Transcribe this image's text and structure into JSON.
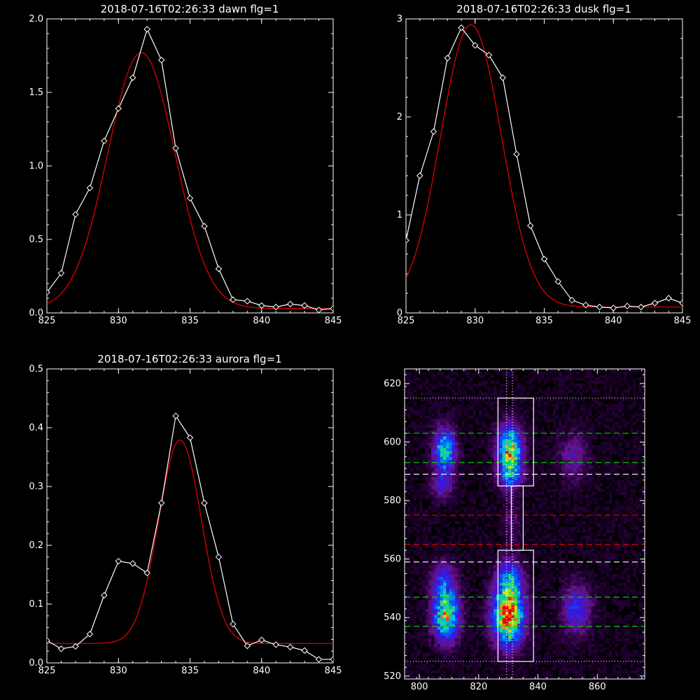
{
  "chart_data": [
    {
      "id": "dawn",
      "type": "line",
      "title": "2018-07-16T02:26:33 dawn flg=1",
      "xlim": [
        825,
        845
      ],
      "ylim": [
        0,
        2.0
      ],
      "xticks": [
        "825",
        "830",
        "835",
        "840",
        "845"
      ],
      "xtick_values": [
        825,
        830,
        835,
        840,
        845
      ],
      "yticks": [
        "0.0",
        "0.5",
        "1.0",
        "1.5",
        "2.0"
      ],
      "ytick_values": [
        0,
        0.5,
        1.0,
        1.5,
        2.0
      ],
      "series": [
        {
          "style": "data",
          "color": "#ffffff",
          "x": [
            825,
            826,
            827,
            828,
            829,
            830,
            831,
            832,
            833,
            834,
            835,
            836,
            837,
            838,
            839,
            840,
            841,
            842,
            843,
            844,
            845
          ],
          "y": [
            0.14,
            0.27,
            0.67,
            0.85,
            1.17,
            1.39,
            1.6,
            1.93,
            1.72,
            1.12,
            0.78,
            0.59,
            0.3,
            0.09,
            0.08,
            0.05,
            0.04,
            0.06,
            0.05,
            0.02,
            0.03
          ]
        },
        {
          "style": "fit",
          "color": "#e00000",
          "center": 831.6,
          "amplitude": 1.74,
          "sigma": 2.35,
          "offset": 0.03
        }
      ]
    },
    {
      "id": "dusk",
      "type": "line",
      "title": "2018-07-16T02:26:33 dusk flg=1",
      "xlim": [
        825,
        845
      ],
      "ylim": [
        0,
        3
      ],
      "xticks": [
        "825",
        "830",
        "835",
        "840",
        "845"
      ],
      "xtick_values": [
        825,
        830,
        835,
        840,
        845
      ],
      "yticks": [
        "0",
        "1",
        "2",
        "3"
      ],
      "ytick_values": [
        0,
        1,
        2,
        3
      ],
      "series": [
        {
          "style": "data",
          "color": "#ffffff",
          "x": [
            825,
            826,
            827,
            828,
            829,
            830,
            831,
            832,
            833,
            834,
            835,
            836,
            837,
            838,
            839,
            840,
            841,
            842,
            843,
            844,
            845
          ],
          "y": [
            0.74,
            1.4,
            1.85,
            2.6,
            2.91,
            2.73,
            2.63,
            2.4,
            1.62,
            0.89,
            0.55,
            0.32,
            0.13,
            0.08,
            0.06,
            0.05,
            0.07,
            0.06,
            0.1,
            0.15,
            0.1
          ]
        },
        {
          "style": "fit",
          "color": "#e00000",
          "center": 829.7,
          "amplitude": 2.88,
          "sigma": 2.2,
          "offset": 0.06
        }
      ]
    },
    {
      "id": "aurora",
      "type": "line",
      "title": "2018-07-16T02:26:33 aurora flg=1",
      "xlim": [
        825,
        845
      ],
      "ylim": [
        0,
        0.5
      ],
      "xticks": [
        "825",
        "830",
        "835",
        "840",
        "845"
      ],
      "xtick_values": [
        825,
        830,
        835,
        840,
        845
      ],
      "yticks": [
        "0.0",
        "0.1",
        "0.2",
        "0.3",
        "0.4",
        "0.5"
      ],
      "ytick_values": [
        0,
        0.1,
        0.2,
        0.3,
        0.4,
        0.5
      ],
      "series": [
        {
          "style": "data",
          "color": "#ffffff",
          "x": [
            825,
            826,
            827,
            828,
            829,
            830,
            831,
            832,
            833,
            834,
            835,
            836,
            837,
            838,
            839,
            840,
            841,
            842,
            843,
            844,
            845
          ],
          "y": [
            0.038,
            0.024,
            0.028,
            0.049,
            0.115,
            0.173,
            0.169,
            0.153,
            0.272,
            0.42,
            0.383,
            0.272,
            0.18,
            0.066,
            0.029,
            0.039,
            0.031,
            0.027,
            0.021,
            0.006,
            0.006
          ]
        },
        {
          "style": "fit",
          "color": "#e00000",
          "center": 834.3,
          "amplitude": 0.346,
          "sigma": 1.5,
          "offset": 0.033
        }
      ]
    },
    {
      "id": "image",
      "type": "heatmap",
      "xlim": [
        795,
        876
      ],
      "ylim": [
        519,
        625
      ],
      "xticks": [
        "800",
        "820",
        "840",
        "860"
      ],
      "xtick_values": [
        800,
        820,
        840,
        860
      ],
      "yticks": [
        "520",
        "540",
        "560",
        "580",
        "600",
        "620"
      ],
      "ytick_values": [
        520,
        540,
        560,
        580,
        600,
        620
      ],
      "spots": [
        {
          "x": 808.5,
          "y": 597,
          "sx": 2.6,
          "sy": 5.5,
          "amp": 0.72
        },
        {
          "x": 807.5,
          "y": 585,
          "sx": 2.6,
          "sy": 3.5,
          "amp": 0.28
        },
        {
          "x": 809,
          "y": 541,
          "sx": 3.0,
          "sy": 6.0,
          "amp": 0.95
        },
        {
          "x": 808,
          "y": 553,
          "sx": 3.0,
          "sy": 4.5,
          "amp": 0.35
        },
        {
          "x": 830.5,
          "y": 597,
          "sx": 2.8,
          "sy": 6.0,
          "amp": 1.0
        },
        {
          "x": 831,
          "y": 588,
          "sx": 3.0,
          "sy": 3.0,
          "amp": 0.3
        },
        {
          "x": 830,
          "y": 541,
          "sx": 3.6,
          "sy": 7.0,
          "amp": 1.2
        },
        {
          "x": 830.5,
          "y": 554,
          "sx": 3.0,
          "sy": 4.5,
          "amp": 0.45
        },
        {
          "x": 852,
          "y": 595,
          "sx": 3.5,
          "sy": 6.0,
          "amp": 0.25
        },
        {
          "x": 853,
          "y": 543,
          "sx": 3.5,
          "sy": 6.0,
          "amp": 0.42
        },
        {
          "x": 831,
          "y": 573,
          "sx": 2.0,
          "sy": 6.0,
          "amp": 0.16
        }
      ],
      "dotted_vertical_x": [
        829.4,
        831.4
      ],
      "dotted_horizontal_y": [
        525,
        615
      ],
      "white_dashed_y": [
        559,
        589
      ],
      "green_dashed_y": [
        537,
        547,
        593,
        603
      ],
      "red_dashed_y": [
        565,
        575
      ],
      "boxes": [
        {
          "x0": 826.5,
          "x1": 838.5,
          "y0": 525,
          "y1": 563
        },
        {
          "x0": 826.5,
          "x1": 838.5,
          "y0": 585,
          "y1": 615
        },
        {
          "x0": 831,
          "x1": 835,
          "y0": 563,
          "y1": 585
        }
      ],
      "colors": {
        "dotted": "#ffffff",
        "white_dashed": "#ffffff",
        "green_dashed": "#00d000",
        "red_dashed": "#e00000",
        "box": "#ffffff"
      }
    }
  ]
}
